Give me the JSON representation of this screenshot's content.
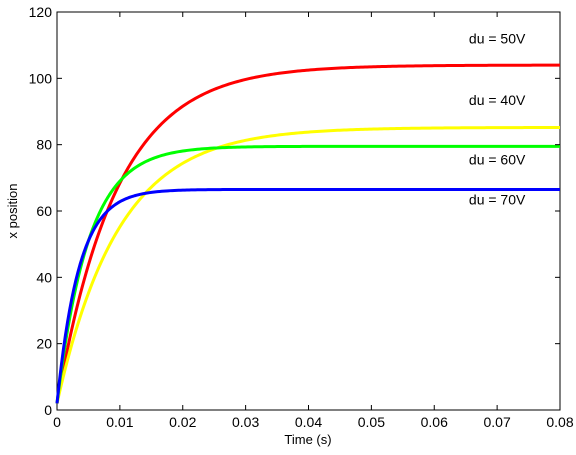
{
  "chart_data": {
    "type": "line",
    "title": "",
    "xlabel": "Time (s)",
    "ylabel": "x position",
    "xlim": [
      0,
      0.08
    ],
    "ylim": [
      0,
      120
    ],
    "xticks": [
      0,
      0.01,
      0.02,
      0.03,
      0.04,
      0.05,
      0.06,
      0.07,
      0.08
    ],
    "xtick_labels": [
      "0",
      "0.01",
      "0.02",
      "0.03",
      "0.04",
      "0.05",
      "0.06",
      "0.07",
      "0.08"
    ],
    "yticks": [
      0,
      20,
      40,
      60,
      80,
      100,
      120
    ],
    "ytick_labels": [
      "0",
      "20",
      "40",
      "60",
      "80",
      "100",
      "120"
    ],
    "grid": false,
    "legend": "none",
    "series": [
      {
        "name": "du = 50V",
        "color": "#ff0000",
        "x0": 0,
        "y0": 2,
        "final": 104,
        "tau": 0.0095
      },
      {
        "name": "du = 40V",
        "color": "#ffff00",
        "x0": 0,
        "y0": 2,
        "final": 85.2,
        "tau": 0.0098
      },
      {
        "name": "du = 60V",
        "color": "#00ff00",
        "x0": 0,
        "y0": 2,
        "final": 79.5,
        "tau": 0.005
      },
      {
        "name": "du = 70V",
        "color": "#0000ff",
        "x0": 0,
        "y0": 2,
        "final": 66.5,
        "tau": 0.0035
      }
    ],
    "annotations": [
      {
        "text": "du = 50V",
        "x": 0.07,
        "y": 110.5
      },
      {
        "text": "du = 40V",
        "x": 0.07,
        "y": 92
      },
      {
        "text": "du = 60V",
        "x": 0.07,
        "y": 74
      },
      {
        "text": "du = 70V",
        "x": 0.07,
        "y": 62
      }
    ]
  }
}
